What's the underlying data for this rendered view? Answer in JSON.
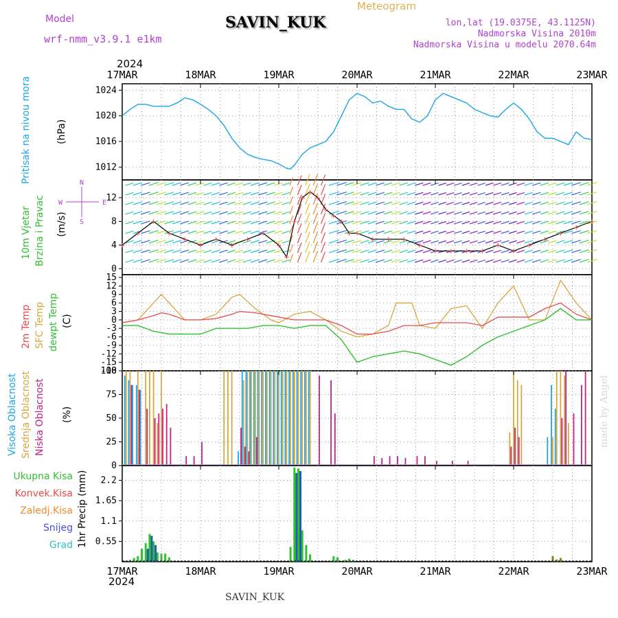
{
  "header": {
    "model_label": "Model",
    "model_name": "wrf-nmm_v3.9.1 e1km",
    "meteogram_label": "Meteogram",
    "station": "SAVIN_KUK",
    "lonlat": "lon,lat (19.0375E, 43.1125N)",
    "elevation": "Nadmorska Visina 2010m",
    "model_elevation": "Nadmorska Visina u modelu 2070.64m",
    "year_top": "2024",
    "year_bottom": "2024",
    "bottom_station": "SAVIN_KUK",
    "watermark": "made by Angel"
  },
  "colors": {
    "pressure": "#1aa6e6",
    "t2m": "#e84a4a",
    "sfc": "#d9a53b",
    "dew": "#30c030",
    "label_purple": "#b040d0",
    "visoka": "#1aa6e6",
    "srednja": "#d9a53b",
    "niska": "#c02080",
    "ukupna": "#30c030",
    "konvek": "#e84a4a",
    "zaledj": "#f08a30",
    "snijeg": "#4a4ae0",
    "grad": "#30c0c0"
  },
  "panel_labels": {
    "pressure": "Pritisak na nivou mora",
    "pressure_unit": "(hPa)",
    "wind1": "10m Vjetar",
    "wind2": "Brzina i Pravac",
    "wind_unit": "(m/s)",
    "compass_n": "N",
    "compass_e": "E",
    "compass_w": "W",
    "compass_s": "S",
    "temp1": "2m Temp",
    "temp2": "SFC Temp",
    "temp3": "dewpt Temp",
    "temp_unit": "(C)",
    "cloud1": "Visoka Oblacnost",
    "cloud2": "Srednja Oblacnost",
    "cloud3": "Niska Oblacnost",
    "cloud_unit": "(%)",
    "precip_axis": "1hr Precip (mm)",
    "legend": [
      "Ukupna Kisa",
      "Konvek.Kisa",
      "Zaledj.Kisa",
      "Snijeg",
      "Grad"
    ]
  },
  "chart_data": {
    "type": "line",
    "x_labels": [
      "17MAR",
      "18MAR",
      "19MAR",
      "20MAR",
      "21MAR",
      "22MAR",
      "23MAR"
    ],
    "xlim_days": [
      17,
      23
    ],
    "panels": {
      "pressure": {
        "ylim": [
          1010,
          1025
        ],
        "ticks": [
          1012,
          1016,
          1020,
          1024
        ],
        "series": [
          {
            "name": "Pritisak na nivou mora",
            "x": [
              17.0,
              17.1,
              17.2,
              17.3,
              17.4,
              17.5,
              17.6,
              17.7,
              17.8,
              17.9,
              18.0,
              18.1,
              18.2,
              18.3,
              18.4,
              18.5,
              18.6,
              18.7,
              18.8,
              18.9,
              19.0,
              19.1,
              19.15,
              19.2,
              19.3,
              19.4,
              19.5,
              19.6,
              19.7,
              19.8,
              19.9,
              20.0,
              20.1,
              20.2,
              20.3,
              20.4,
              20.5,
              20.6,
              20.7,
              20.8,
              20.9,
              21.0,
              21.1,
              21.2,
              21.3,
              21.4,
              21.5,
              21.6,
              21.7,
              21.8,
              21.9,
              22.0,
              22.1,
              22.2,
              22.3,
              22.4,
              22.5,
              22.6,
              22.7,
              22.8,
              22.9,
              23.0
            ],
            "y": [
              1020,
              1021,
              1021.8,
              1021.8,
              1021.5,
              1021.5,
              1021.5,
              1022,
              1022.8,
              1022.5,
              1021.8,
              1021,
              1020,
              1018.5,
              1016.5,
              1015,
              1014,
              1013.5,
              1013.2,
              1013,
              1012.5,
              1011.8,
              1011.7,
              1012.3,
              1014,
              1015,
              1015.5,
              1016,
              1017.5,
              1020,
              1022.5,
              1023.5,
              1023,
              1022,
              1022.3,
              1021.5,
              1021,
              1021,
              1019.5,
              1019,
              1020,
              1022.5,
              1023.5,
              1023,
              1022.5,
              1022,
              1021,
              1020.5,
              1020,
              1019.8,
              1021,
              1022,
              1021,
              1019.5,
              1017.5,
              1016.5,
              1016.5,
              1016,
              1015.5,
              1017.5,
              1016.5,
              1016.3
            ]
          }
        ]
      },
      "wind": {
        "ylim": [
          -1,
          15
        ],
        "ticks": [
          0,
          4,
          8,
          12
        ],
        "series": [
          {
            "name": "10m Vjetar",
            "x": [
              17.0,
              17.2,
              17.4,
              17.6,
              17.8,
              18.0,
              18.2,
              18.4,
              18.6,
              18.8,
              19.0,
              19.1,
              19.2,
              19.3,
              19.4,
              19.5,
              19.6,
              19.7,
              19.8,
              19.9,
              20.0,
              20.2,
              20.4,
              20.6,
              20.8,
              21.0,
              21.2,
              21.4,
              21.6,
              21.8,
              22.0,
              22.2,
              22.4,
              22.6,
              22.8,
              23.0
            ],
            "y": [
              4,
              6,
              8,
              6,
              5,
              4,
              5,
              4,
              5,
              6,
              4,
              2,
              8,
              12,
              13,
              12,
              10,
              9,
              8,
              6,
              6,
              5,
              5,
              5,
              4,
              3,
              3,
              3,
              3,
              4,
              3,
              4,
              5,
              6,
              7,
              8
            ]
          }
        ]
      },
      "temperature": {
        "ylim": [
          -18,
          16
        ],
        "ticks": [
          -18,
          -15,
          -12,
          -9,
          -6,
          -3,
          0,
          3,
          6,
          9,
          12,
          15
        ],
        "series": [
          {
            "name": "2m Temp",
            "x": [
              17.0,
              17.2,
              17.4,
              17.5,
              17.6,
              17.8,
              18.0,
              18.2,
              18.4,
              18.5,
              18.7,
              18.9,
              19.0,
              19.2,
              19.4,
              19.6,
              19.8,
              20.0,
              20.2,
              20.4,
              20.6,
              20.8,
              21.0,
              21.2,
              21.4,
              21.6,
              21.8,
              22.0,
              22.2,
              22.4,
              22.6,
              22.8,
              23.0
            ],
            "y": [
              -1,
              0,
              1.5,
              2.5,
              2,
              0,
              0,
              0.5,
              2,
              3,
              2.5,
              1.5,
              1,
              0,
              0,
              0,
              -2,
              -5,
              -5,
              -4,
              -2,
              -2,
              -1,
              -1,
              -1,
              -2,
              1,
              1,
              1,
              4,
              6,
              2,
              0
            ]
          },
          {
            "name": "SFC Temp",
            "x": [
              17.0,
              17.2,
              17.4,
              17.5,
              17.6,
              17.8,
              18.0,
              18.2,
              18.4,
              18.5,
              18.7,
              18.9,
              19.0,
              19.2,
              19.4,
              19.6,
              19.8,
              20.0,
              20.2,
              20.4,
              20.5,
              20.7,
              20.8,
              21.0,
              21.2,
              21.4,
              21.6,
              21.8,
              22.0,
              22.2,
              22.4,
              22.6,
              22.8,
              23.0
            ],
            "y": [
              -1,
              0,
              6,
              9,
              6,
              0,
              0,
              2,
              8,
              9,
              4,
              0,
              -1,
              2,
              3,
              0,
              -4,
              -6,
              -5,
              -2,
              6,
              6,
              -2,
              -3,
              4,
              5,
              -3,
              6,
              12,
              0,
              0,
              14,
              6,
              0
            ]
          },
          {
            "name": "dewpt Temp",
            "x": [
              17.0,
              17.2,
              17.4,
              17.6,
              17.8,
              18.0,
              18.2,
              18.4,
              18.6,
              18.8,
              19.0,
              19.2,
              19.4,
              19.6,
              19.8,
              20.0,
              20.2,
              20.4,
              20.6,
              20.8,
              21.0,
              21.2,
              21.4,
              21.6,
              21.8,
              22.0,
              22.2,
              22.4,
              22.6,
              22.8,
              23.0
            ],
            "y": [
              -2,
              -2,
              -4,
              -5,
              -5,
              -5,
              -3,
              -3,
              -3,
              -2,
              -2,
              -3,
              -2,
              -2,
              -7,
              -15,
              -13,
              -12,
              -11,
              -12,
              -14,
              -16,
              -13,
              -9,
              -6,
              -4,
              -2,
              0,
              4,
              0,
              0
            ]
          }
        ]
      },
      "clouds": {
        "ylim": [
          0,
          100
        ],
        "ticks": [
          0,
          25,
          50,
          75,
          100
        ],
        "series": [
          {
            "name": "Visoka Oblacnost",
            "x": [
              17.05,
              17.1,
              17.15,
              17.2,
              17.25,
              18.5,
              18.55,
              18.6,
              18.65,
              18.7,
              18.75,
              18.8,
              18.85,
              18.9,
              18.95,
              19.0,
              19.05,
              19.1,
              19.15,
              19.2,
              19.25,
              19.3,
              19.35,
              19.4,
              22.45,
              22.5,
              22.55
            ],
            "y": [
              95,
              90,
              85,
              85,
              80,
              15,
              100,
              100,
              100,
              100,
              100,
              100,
              100,
              100,
              100,
              100,
              100,
              100,
              100,
              100,
              100,
              100,
              100,
              100,
              30,
              85,
              60
            ]
          },
          {
            "name": "Srednja Oblacnost",
            "x": [
              17.05,
              17.1,
              17.2,
              17.3,
              17.35,
              17.4,
              17.45,
              17.5,
              18.3,
              18.35,
              18.4,
              18.55,
              18.6,
              18.65,
              18.7,
              18.75,
              18.8,
              18.85,
              18.9,
              18.95,
              19.0,
              19.05,
              19.1,
              19.15,
              19.2,
              19.25,
              19.3,
              19.35,
              19.4,
              21.95,
              22.0,
              22.05,
              22.1,
              22.5,
              22.55,
              22.6,
              22.65,
              22.7
            ],
            "y": [
              100,
              100,
              100,
              100,
              100,
              100,
              45,
              100,
              100,
              100,
              100,
              90,
              100,
              100,
              100,
              100,
              100,
              100,
              100,
              100,
              100,
              100,
              100,
              100,
              100,
              100,
              100,
              100,
              100,
              35,
              100,
              90,
              85,
              30,
              100,
              100,
              95,
              45
            ]
          },
          {
            "name": "Niska Oblacnost",
            "x": [
              17.1,
              17.2,
              17.3,
              17.4,
              17.45,
              17.5,
              17.55,
              17.6,
              17.8,
              17.9,
              18.0,
              18.5,
              18.55,
              18.6,
              18.7,
              19.5,
              19.65,
              19.7,
              20.2,
              20.3,
              20.4,
              20.5,
              20.6,
              20.75,
              20.85,
              21.0,
              21.2,
              21.4,
              21.95,
              22.0,
              22.05,
              22.6,
              22.65,
              22.75,
              22.85,
              22.9
            ],
            "y": [
              85,
              80,
              60,
              50,
              55,
              60,
              65,
              40,
              10,
              10,
              25,
              40,
              20,
              15,
              30,
              95,
              90,
              55,
              10,
              8,
              10,
              10,
              8,
              10,
              10,
              5,
              5,
              5,
              20,
              40,
              30,
              50,
              100,
              55,
              85,
              100
            ]
          }
        ]
      },
      "precip": {
        "ylim": [
          0,
          2.6
        ],
        "ticks": [
          0.55,
          1.1,
          1.65,
          2.2
        ],
        "series": [
          {
            "name": "Ukupna Kisa",
            "x": [
              17.1,
              17.15,
              17.2,
              17.25,
              17.3,
              17.35,
              17.4,
              17.45,
              17.5,
              17.55,
              17.6,
              19.15,
              19.2,
              19.25,
              19.3,
              19.35,
              19.4,
              19.7,
              19.75,
              19.85,
              19.9,
              19.95,
              22.5,
              22.55,
              22.6
            ],
            "y": [
              0.05,
              0.1,
              0.15,
              0.35,
              0.5,
              0.75,
              0.55,
              0.25,
              0.22,
              0.22,
              0.12,
              0.4,
              2.55,
              2.52,
              0.85,
              0.45,
              0.2,
              0.15,
              0.12,
              0.05,
              0.08,
              0.05,
              0.15,
              0.06,
              0.1
            ]
          },
          {
            "name": "Snijeg",
            "x": [
              17.3,
              17.35,
              17.4,
              19.2,
              19.25
            ],
            "y": [
              0.35,
              0.7,
              0.45,
              2.4,
              2.45
            ]
          }
        ]
      }
    }
  }
}
